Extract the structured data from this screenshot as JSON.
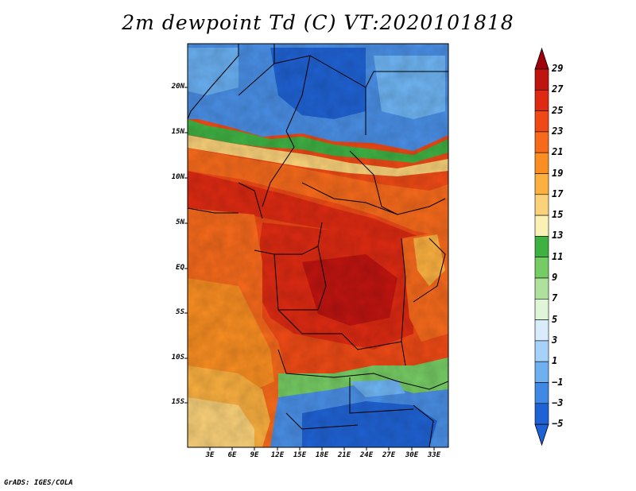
{
  "title": "2m dewpoint Td (C) VT:2020101818",
  "credit": "GrADS: IGES/COLA",
  "map": {
    "lat_labels": [
      "20N",
      "15N",
      "10N",
      "5N",
      "EQ",
      "5S",
      "10S",
      "15S"
    ],
    "lon_labels": [
      "3E",
      "6E",
      "9E",
      "12E",
      "15E",
      "18E",
      "21E",
      "24E",
      "27E",
      "30E",
      "33E"
    ]
  },
  "colorbar": {
    "labels": [
      "29",
      "27",
      "25",
      "23",
      "21",
      "19",
      "17",
      "15",
      "13",
      "11",
      "9",
      "7",
      "5",
      "3",
      "1",
      "−1",
      "−3",
      "−5"
    ],
    "colors": [
      "#a0000a",
      "#c01410",
      "#de2a12",
      "#ef4a16",
      "#f76a1c",
      "#fa8e22",
      "#fbb040",
      "#fbd27a",
      "#fbf1b4",
      "#3fb143",
      "#76cc64",
      "#aee29c",
      "#dff5d8",
      "#d8ecfb",
      "#a6d1f8",
      "#6fb0f0",
      "#3f88e4",
      "#1e62d6"
    ],
    "top_triangle_color": "#a0000a",
    "bottom_triangle_color": "#1e62d6"
  }
}
